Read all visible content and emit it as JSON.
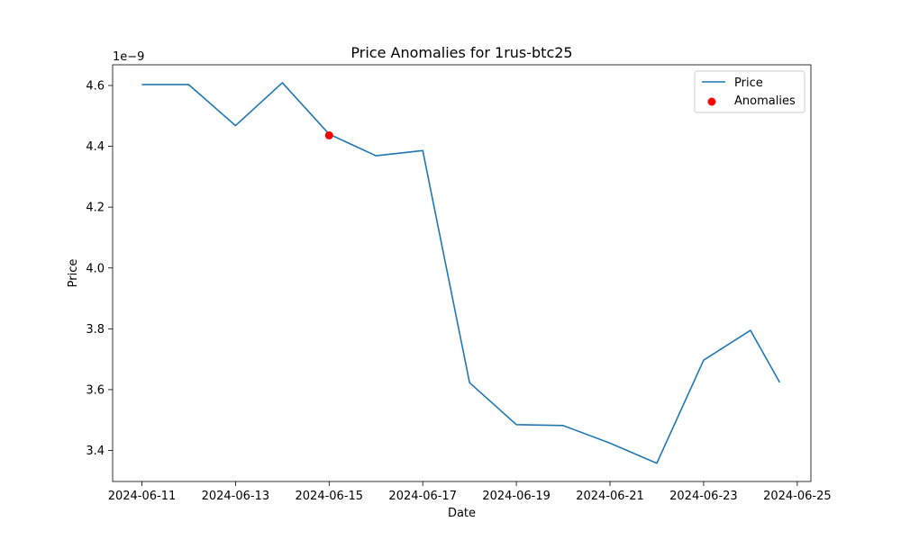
{
  "chart_data": {
    "type": "line",
    "title": "Price Anomalies for 1rus-btc25",
    "xlabel": "Date",
    "ylabel": "Price",
    "y_offset_label": "1e−9",
    "y_scale": 1e-09,
    "xlim": [
      "2024-06-10 09:00",
      "2024-06-25 07:00"
    ],
    "ylim": [
      3.298e-09,
      4.668e-09
    ],
    "x_ticks": [
      "2024-06-11",
      "2024-06-13",
      "2024-06-15",
      "2024-06-17",
      "2024-06-19",
      "2024-06-21",
      "2024-06-23",
      "2024-06-25"
    ],
    "y_ticks": [
      3.4e-09,
      3.6e-09,
      3.8e-09,
      4e-09,
      4.2e-09,
      4.4e-09,
      4.6e-09
    ],
    "y_tick_labels": [
      "3.4",
      "3.6",
      "3.8",
      "4.0",
      "4.2",
      "4.4",
      "4.6"
    ],
    "grid": false,
    "legend_position": "top-right",
    "series": [
      {
        "name": "Price",
        "kind": "line",
        "color": "#1f77b4",
        "x": [
          "2024-06-11",
          "2024-06-12",
          "2024-06-13",
          "2024-06-14",
          "2024-06-15",
          "2024-06-16",
          "2024-06-17",
          "2024-06-18",
          "2024-06-19",
          "2024-06-20",
          "2024-06-21",
          "2024-06-22",
          "2024-06-23",
          "2024-06-24",
          "2024-06-24 15:00"
        ],
        "y": [
          4.603e-09,
          4.603e-09,
          4.468e-09,
          4.609e-09,
          4.44e-09,
          4.369e-09,
          4.386e-09,
          3.623e-09,
          3.485e-09,
          3.482e-09,
          3.424e-09,
          3.358e-09,
          3.697e-09,
          3.795e-09,
          3.624e-09
        ]
      },
      {
        "name": "Anomalies",
        "kind": "scatter",
        "color": "#ff0000",
        "x": [
          "2024-06-15"
        ],
        "y": [
          4.436e-09
        ]
      }
    ]
  }
}
